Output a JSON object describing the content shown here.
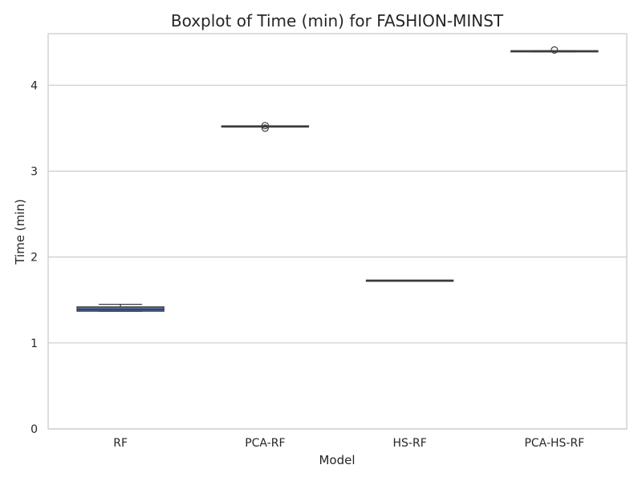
{
  "chart_data": {
    "type": "boxplot",
    "title": "Boxplot of Time (min) for FASHION-MINST",
    "xlabel": "Model",
    "ylabel": "Time (min)",
    "ylim": [
      0,
      4.6
    ],
    "yticks": [
      0,
      1,
      2,
      3,
      4
    ],
    "grid": "horizontal",
    "categories": [
      "RF",
      "PCA-RF",
      "HS-RF",
      "PCA-HS-RF"
    ],
    "boxes": [
      {
        "category": "RF",
        "whisker_low": 1.37,
        "q1": 1.37,
        "median": 1.39,
        "q3": 1.42,
        "whisker_high": 1.45,
        "outliers": []
      },
      {
        "category": "PCA-RF",
        "whisker_low": 3.52,
        "q1": 3.52,
        "median": 3.52,
        "q3": 3.52,
        "whisker_high": 3.52,
        "outliers": [
          3.5,
          3.53
        ]
      },
      {
        "category": "HS-RF",
        "whisker_low": 1.72,
        "q1": 1.72,
        "median": 1.725,
        "q3": 1.73,
        "whisker_high": 1.73,
        "outliers": []
      },
      {
        "category": "PCA-HS-RF",
        "whisker_low": 4.39,
        "q1": 4.39,
        "median": 4.395,
        "q3": 4.4,
        "whisker_high": 4.4,
        "outliers": [
          4.41
        ]
      }
    ],
    "colors": {
      "box": "#4c72b0",
      "line": "#3d3d3d",
      "grid": "#cccccc",
      "frame": "#cccccc"
    }
  }
}
